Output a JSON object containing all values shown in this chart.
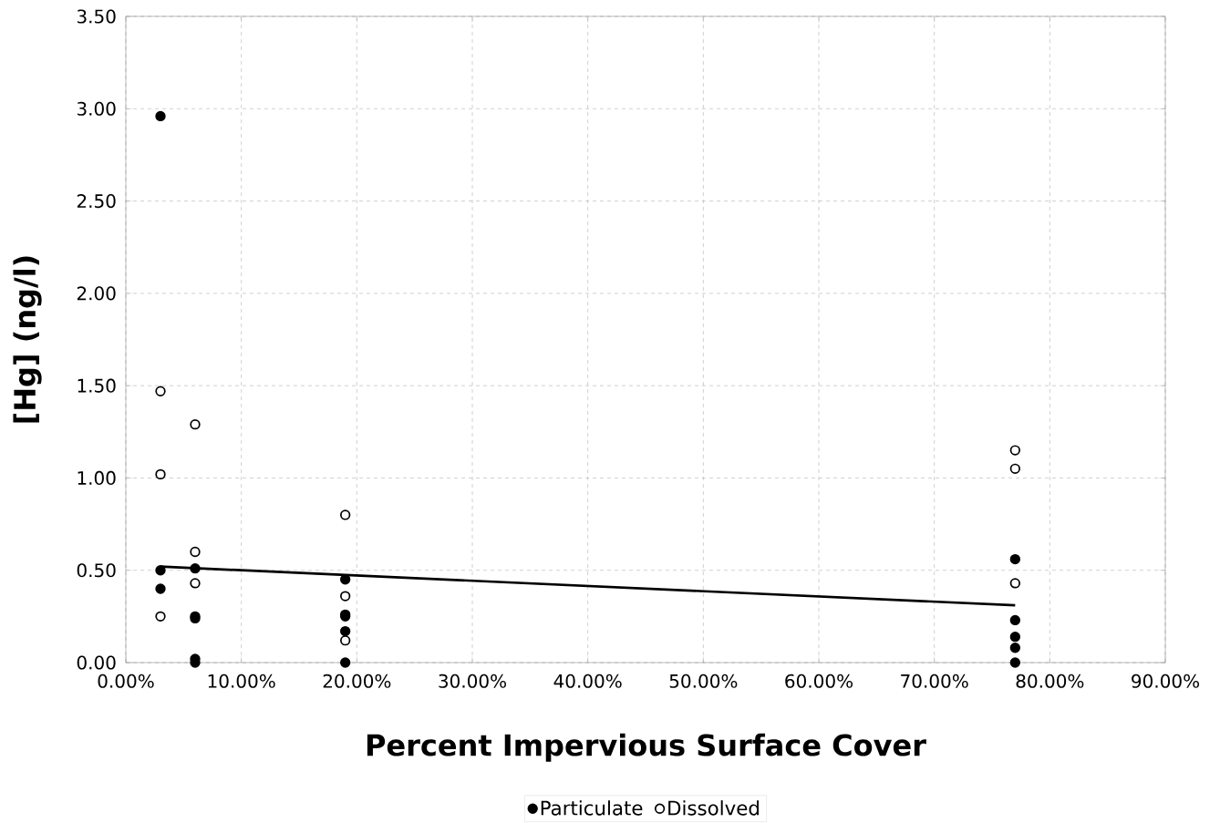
{
  "chart_data": {
    "type": "scatter",
    "xlabel": "Percent Impervious Surface Cover",
    "ylabel": "[Hg] (ng/l)",
    "xlim": [
      0,
      90
    ],
    "ylim": [
      0,
      3.5
    ],
    "xticks": [
      {
        "value": 0,
        "label": "0.00%"
      },
      {
        "value": 10,
        "label": "10.00%"
      },
      {
        "value": 20,
        "label": "20.00%"
      },
      {
        "value": 30,
        "label": "30.00%"
      },
      {
        "value": 40,
        "label": "40.00%"
      },
      {
        "value": 50,
        "label": "50.00%"
      },
      {
        "value": 60,
        "label": "60.00%"
      },
      {
        "value": 70,
        "label": "70.00%"
      },
      {
        "value": 80,
        "label": "80.00%"
      },
      {
        "value": 90,
        "label": "90.00%"
      }
    ],
    "yticks": [
      {
        "value": 0,
        "label": "0.00"
      },
      {
        "value": 0.5,
        "label": "0.50"
      },
      {
        "value": 1,
        "label": "1.00"
      },
      {
        "value": 1.5,
        "label": "1.50"
      },
      {
        "value": 2,
        "label": "2.00"
      },
      {
        "value": 2.5,
        "label": "2.50"
      },
      {
        "value": 3,
        "label": "3.00"
      },
      {
        "value": 3.5,
        "label": "3.50"
      }
    ],
    "grid": true,
    "legend": "bottom",
    "series": [
      {
        "name": "Particulate",
        "color": "#000000",
        "marker": "circle",
        "x": [
          3,
          3,
          3,
          6,
          6,
          6,
          6,
          6,
          19,
          19,
          19,
          19,
          19,
          77,
          77,
          77,
          77,
          77
        ],
        "values": [
          2.96,
          0.5,
          0.4,
          0.51,
          0.25,
          0.24,
          0.02,
          0.0,
          0.45,
          0.26,
          0.25,
          0.17,
          0.0,
          0.56,
          0.23,
          0.14,
          0.08,
          0.0
        ]
      },
      {
        "name": "Dissolved",
        "color": "#ffffff",
        "marker": "circle",
        "x": [
          3,
          3,
          3,
          6,
          6,
          6,
          19,
          19,
          19,
          77,
          77,
          77
        ],
        "values": [
          1.47,
          1.02,
          0.25,
          1.29,
          0.6,
          0.43,
          0.8,
          0.36,
          0.12,
          1.15,
          1.05,
          0.43
        ]
      },
      {
        "type": "line",
        "marker": "none",
        "line_style": "solid",
        "color": "#000000",
        "x": [
          3,
          77
        ],
        "values": [
          0.52,
          0.31
        ]
      }
    ]
  }
}
